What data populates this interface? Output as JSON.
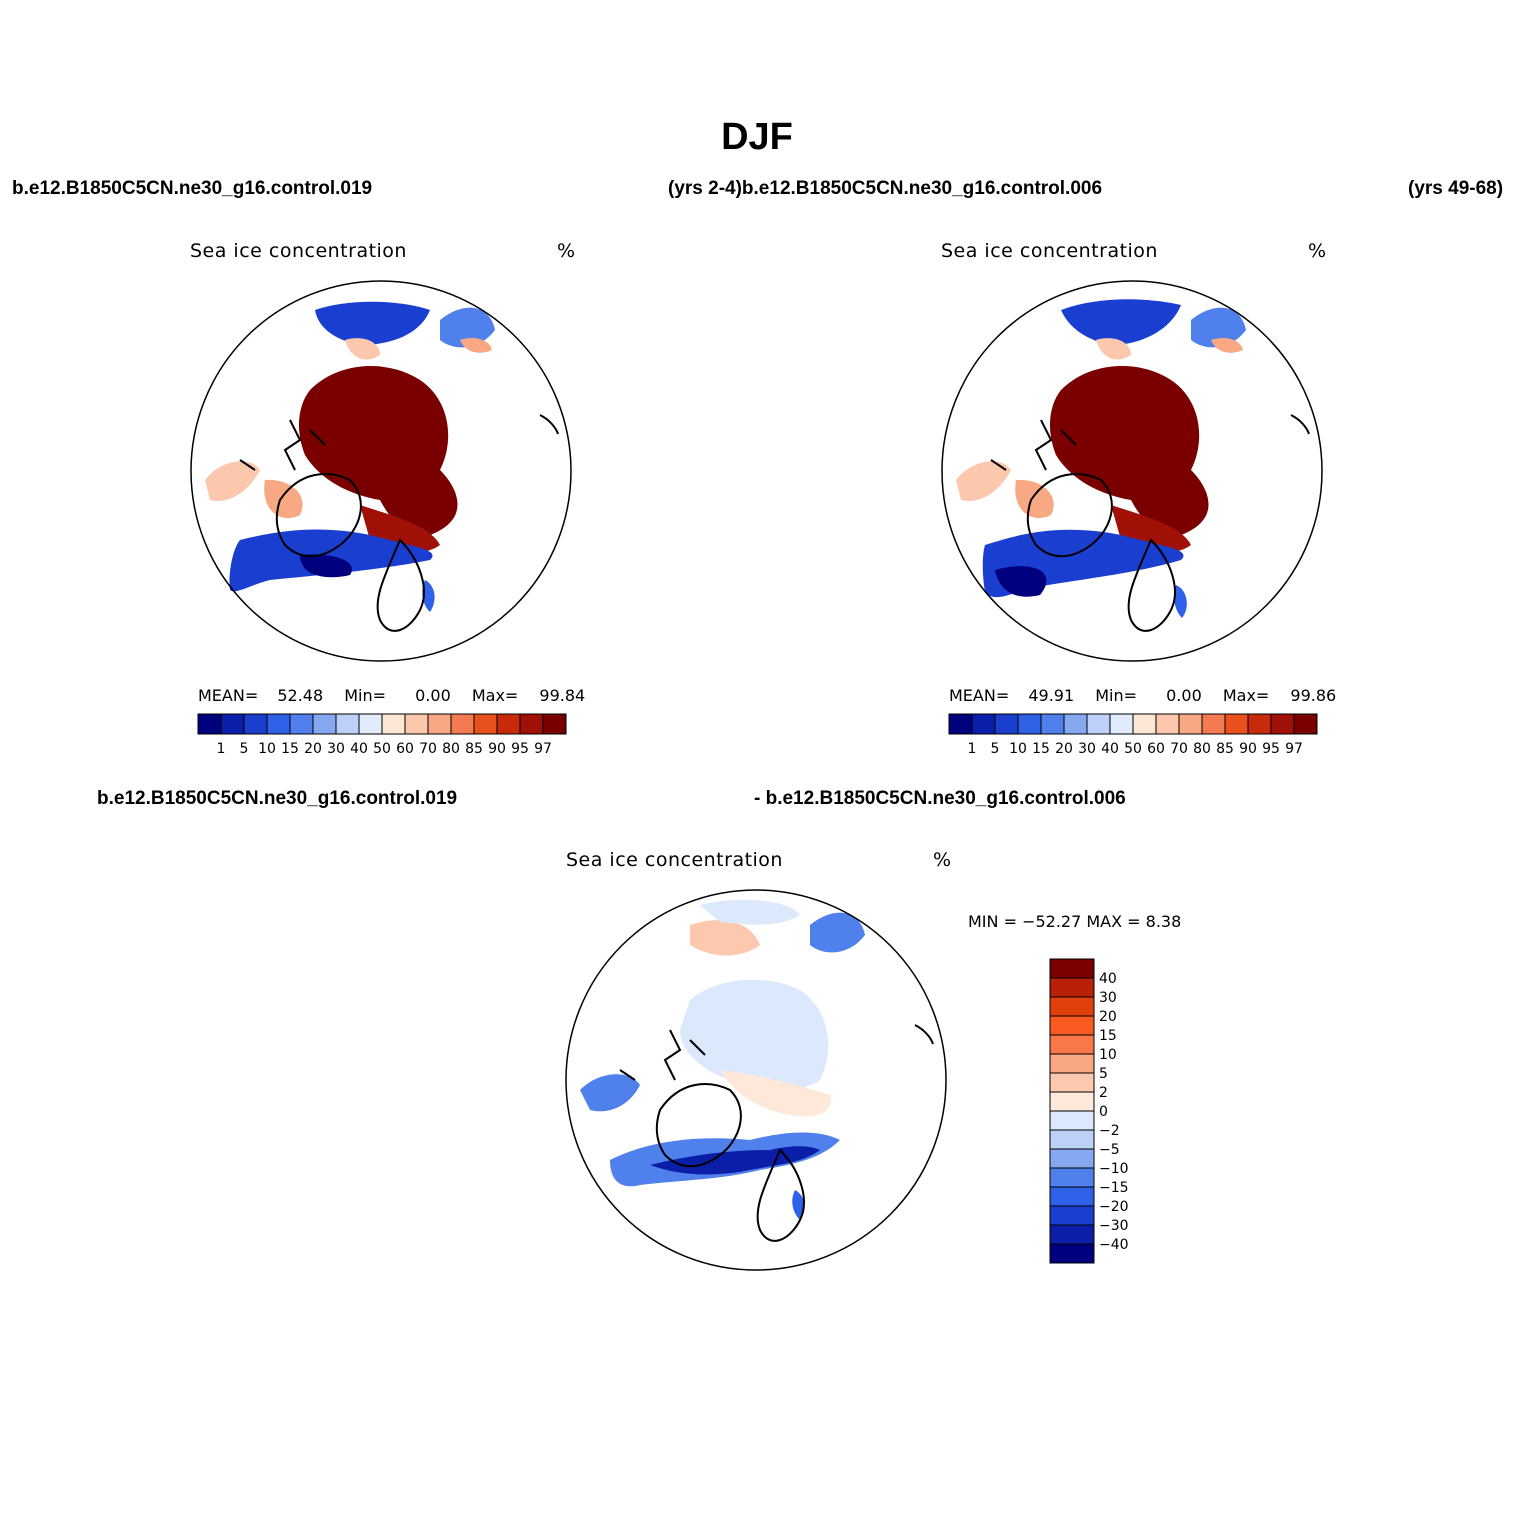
{
  "title": "DJF",
  "header": {
    "case_a": "b.e12.B1850C5CN.ne30_g16.control.019",
    "years_a_case_b": "(yrs 2-4)b.e12.B1850C5CN.ne30_g16.control.006",
    "years_b": "(yrs 49-68)",
    "diff_case_a": "b.e12.B1850C5CN.ne30_g16.control.019",
    "diff_case_b": "- b.e12.B1850C5CN.ne30_g16.control.006"
  },
  "panels": [
    {
      "label": "Sea ice concentration",
      "units": "%",
      "mean_label": "MEAN=",
      "mean": "52.48",
      "min_label": "Min=",
      "min": "0.00",
      "max_label": "Max=",
      "max": "99.84"
    },
    {
      "label": "Sea ice concentration",
      "units": "%",
      "mean_label": "MEAN=",
      "mean": "49.91",
      "min_label": "Min=",
      "min": "0.00",
      "max_label": "Max=",
      "max": "99.86"
    }
  ],
  "diff_panel": {
    "label": "Sea ice concentration",
    "units": "%",
    "minmax": "MIN = −52.27 MAX =    8.38"
  },
  "colorbar_abs": {
    "levels": [
      "1",
      "5",
      "10",
      "15",
      "20",
      "30",
      "40",
      "50",
      "60",
      "70",
      "80",
      "85",
      "90",
      "95",
      "97"
    ],
    "colors": [
      "#00007f",
      "#0a1ea8",
      "#1a3fd0",
      "#2f62e8",
      "#5080ec",
      "#86a8f0",
      "#bcd0f8",
      "#e0ecfc",
      "#fde6d6",
      "#fbc8ae",
      "#f8a882",
      "#f47a52",
      "#e8501c",
      "#c82a0c",
      "#a01006",
      "#7a0000"
    ]
  },
  "colorbar_diff": {
    "levels": [
      "40",
      "30",
      "20",
      "15",
      "10",
      "5",
      "2",
      "0",
      "−2",
      "−5",
      "−10",
      "−15",
      "−20",
      "−30",
      "−40"
    ],
    "colors": [
      "#7a0000",
      "#b82008",
      "#e0400c",
      "#f85a20",
      "#f8784a",
      "#f8a882",
      "#fcc8ae",
      "#fde8da",
      "#dce8fb",
      "#bcd0f8",
      "#86a8f0",
      "#5080ec",
      "#2f62e8",
      "#1a3fd0",
      "#0a1ea8",
      "#00007f"
    ]
  }
}
